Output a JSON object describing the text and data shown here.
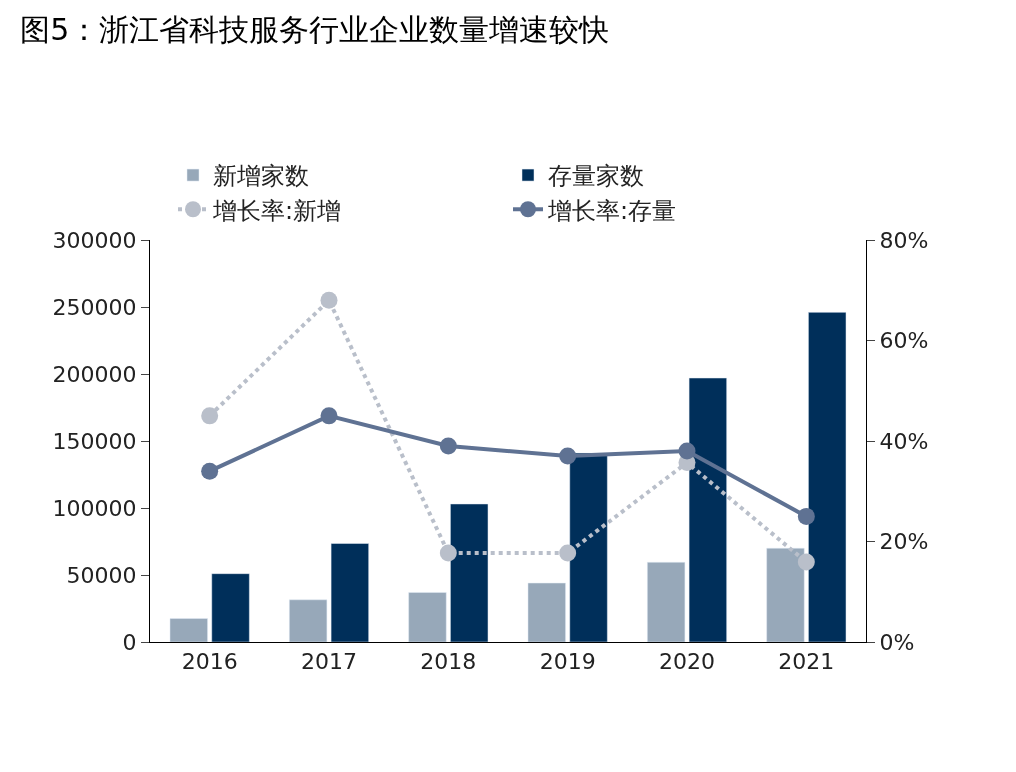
{
  "chart_data": {
    "type": "bar",
    "title": "图5：浙江省科技服务行业企业数量增速较快",
    "categories": [
      "2016",
      "2017",
      "2018",
      "2019",
      "2020",
      "2021"
    ],
    "series": [
      {
        "name": "新增家数",
        "color": "#97a8b9",
        "values": [
          17500,
          31500,
          37000,
          44000,
          59500,
          70000
        ]
      },
      {
        "name": "存量家数",
        "color": "#002f5a",
        "values": [
          51000,
          73500,
          103000,
          141000,
          197000,
          246000
        ]
      },
      {
        "name": "增长率:新增",
        "type": "line",
        "axis": "y2",
        "color": "#b9bfca",
        "line_style": "dotted",
        "marker": "circle",
        "values": [
          45,
          68,
          17.7,
          17.7,
          35.7,
          15.9
        ]
      },
      {
        "name": "增长率:存量",
        "type": "line",
        "axis": "y2",
        "color": "#5f7293",
        "line_style": "solid",
        "marker": "circle",
        "values": [
          34,
          45,
          39,
          37,
          38,
          25
        ]
      }
    ],
    "ylim": [
      0,
      300000
    ],
    "yticks": [
      0,
      50000,
      100000,
      150000,
      200000,
      250000,
      300000
    ],
    "y2lim": [
      0,
      80
    ],
    "y2ticks": [
      {
        "value": 0,
        "label": "0%"
      },
      {
        "value": 20,
        "label": "20%"
      },
      {
        "value": 40,
        "label": "40%"
      },
      {
        "value": 60,
        "label": "60%"
      },
      {
        "value": 80,
        "label": "80%"
      }
    ],
    "legend": "top"
  }
}
